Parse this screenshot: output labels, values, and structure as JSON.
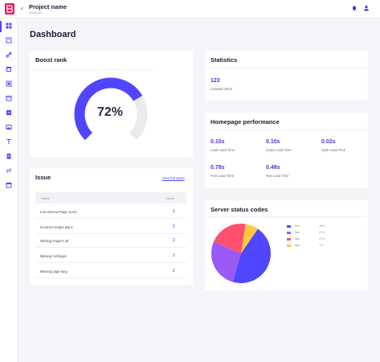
{
  "header": {
    "project_name": "Project name",
    "project_sub": "localhost"
  },
  "page": {
    "title": "Dashboard"
  },
  "sidebar": {
    "items": [
      "dashboard-icon",
      "reports-icon",
      "link-icon",
      "calendar-icon",
      "document-icon",
      "calendar-check-icon",
      "monitor-icon",
      "image-icon",
      "text-icon",
      "clipboard-icon",
      "swap-icon",
      "schedule-icon"
    ]
  },
  "boost_rank": {
    "title": "Boost rank",
    "value": 72,
    "label": "72%"
  },
  "statistics": {
    "title": "Statistics",
    "value": "123",
    "label": "Crawled URLs"
  },
  "performance": {
    "title": "Homepage performance",
    "metrics": [
      {
        "value": "0.10s",
        "label": "Load Load Time"
      },
      {
        "value": "0.10s",
        "label": "Script Load Time"
      },
      {
        "value": "0.02s",
        "label": "Style Load Time"
      },
      {
        "value": "0.78s",
        "label": "Font Load Time"
      },
      {
        "value": "0.48s",
        "label": "Text Load Time"
      }
    ]
  },
  "issue": {
    "title": "Issue",
    "link": "View full report",
    "columns": [
      "Name",
      "Count"
    ],
    "rows": [
      {
        "name": "Low Internal Page Score",
        "count": "2"
      },
      {
        "name": "Incorrect scripts place",
        "count": "2"
      },
      {
        "name": "Missing image's alt",
        "count": "2"
      },
      {
        "name": "Missing hreflangs",
        "count": "2"
      },
      {
        "name": "Missing page lang",
        "count": "2"
      }
    ]
  },
  "server_status": {
    "title": "Server status codes",
    "chart_data": {
      "type": "pie",
      "series": [
        {
          "name": "2xx",
          "value": 45,
          "label": "45%",
          "color": "#5046ff"
        },
        {
          "name": "3xx",
          "value": 27,
          "label": "27%",
          "color": "#9b59f5"
        },
        {
          "name": "4xx",
          "value": 21,
          "label": "21%",
          "color": "#ff5070"
        },
        {
          "name": "5xx",
          "value": 7,
          "label": "7%",
          "color": "#ffc83d"
        }
      ]
    }
  },
  "colors": {
    "accent": "#5046ff",
    "gauge_track": "#ebebee"
  }
}
